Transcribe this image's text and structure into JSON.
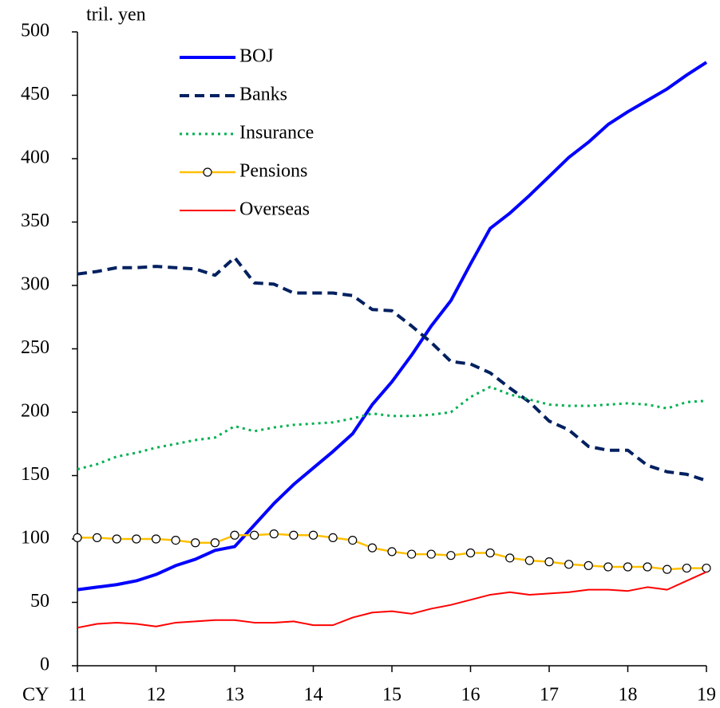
{
  "chart_data": {
    "type": "line",
    "y_label": "tril. yen",
    "x_label": "CY",
    "x": [
      11,
      11.25,
      11.5,
      11.75,
      12,
      12.25,
      12.5,
      12.75,
      13,
      13.25,
      13.5,
      13.75,
      14,
      14.25,
      14.5,
      14.75,
      15,
      15.25,
      15.5,
      15.75,
      16,
      16.25,
      16.5,
      16.75,
      17,
      17.25,
      17.5,
      17.75,
      18,
      18.25,
      18.5,
      18.75,
      19
    ],
    "xlim": [
      11,
      19
    ],
    "xticks": [
      11,
      12,
      13,
      14,
      15,
      16,
      17,
      18,
      19
    ],
    "ylim": [
      0,
      500
    ],
    "yticks": [
      0,
      50,
      100,
      150,
      200,
      250,
      300,
      350,
      400,
      450,
      500
    ],
    "series": [
      {
        "name": "BOJ",
        "color": "#0000ff",
        "style": "solid",
        "width": 4,
        "values": [
          60,
          62,
          64,
          67,
          72,
          79,
          84,
          91,
          94,
          111,
          128,
          143,
          156,
          169,
          183,
          206,
          224,
          245,
          268,
          288,
          317,
          345,
          357,
          371,
          386,
          401,
          413,
          427,
          437,
          446,
          455,
          466,
          476
        ]
      },
      {
        "name": "Banks",
        "color": "#002060",
        "style": "dashed",
        "width": 4,
        "values": [
          309,
          311,
          314,
          314,
          315,
          314,
          313,
          308,
          322,
          302,
          301,
          294,
          294,
          294,
          292,
          281,
          280,
          268,
          255,
          240,
          238,
          231,
          219,
          208,
          193,
          186,
          173,
          170,
          170,
          158,
          153,
          151,
          146
        ]
      },
      {
        "name": "Insurance",
        "color": "#00b050",
        "style": "dotted",
        "width": 3,
        "values": [
          155,
          159,
          165,
          168,
          172,
          175,
          178,
          180,
          189,
          185,
          188,
          190,
          191,
          192,
          195,
          199,
          197,
          197,
          198,
          200,
          212,
          220,
          214,
          210,
          206,
          205,
          205,
          206,
          207,
          206,
          203,
          208,
          209
        ]
      },
      {
        "name": "Pensions",
        "color": "#ffc000",
        "style": "solid",
        "width": 2.5,
        "marker": "circle",
        "values": [
          101,
          101,
          100,
          100,
          100,
          99,
          97,
          97,
          103,
          103,
          104,
          103,
          103,
          101,
          99,
          93,
          90,
          88,
          88,
          87,
          89,
          89,
          85,
          83,
          82,
          80,
          79,
          78,
          78,
          78,
          76,
          77,
          77
        ]
      },
      {
        "name": "Overseas",
        "color": "#ff0000",
        "style": "solid",
        "width": 2,
        "values": [
          30,
          33,
          34,
          33,
          31,
          34,
          35,
          36,
          36,
          34,
          34,
          35,
          32,
          32,
          38,
          42,
          43,
          41,
          45,
          48,
          52,
          56,
          58,
          56,
          57,
          58,
          60,
          60,
          59,
          62,
          60,
          67,
          74
        ]
      }
    ]
  }
}
